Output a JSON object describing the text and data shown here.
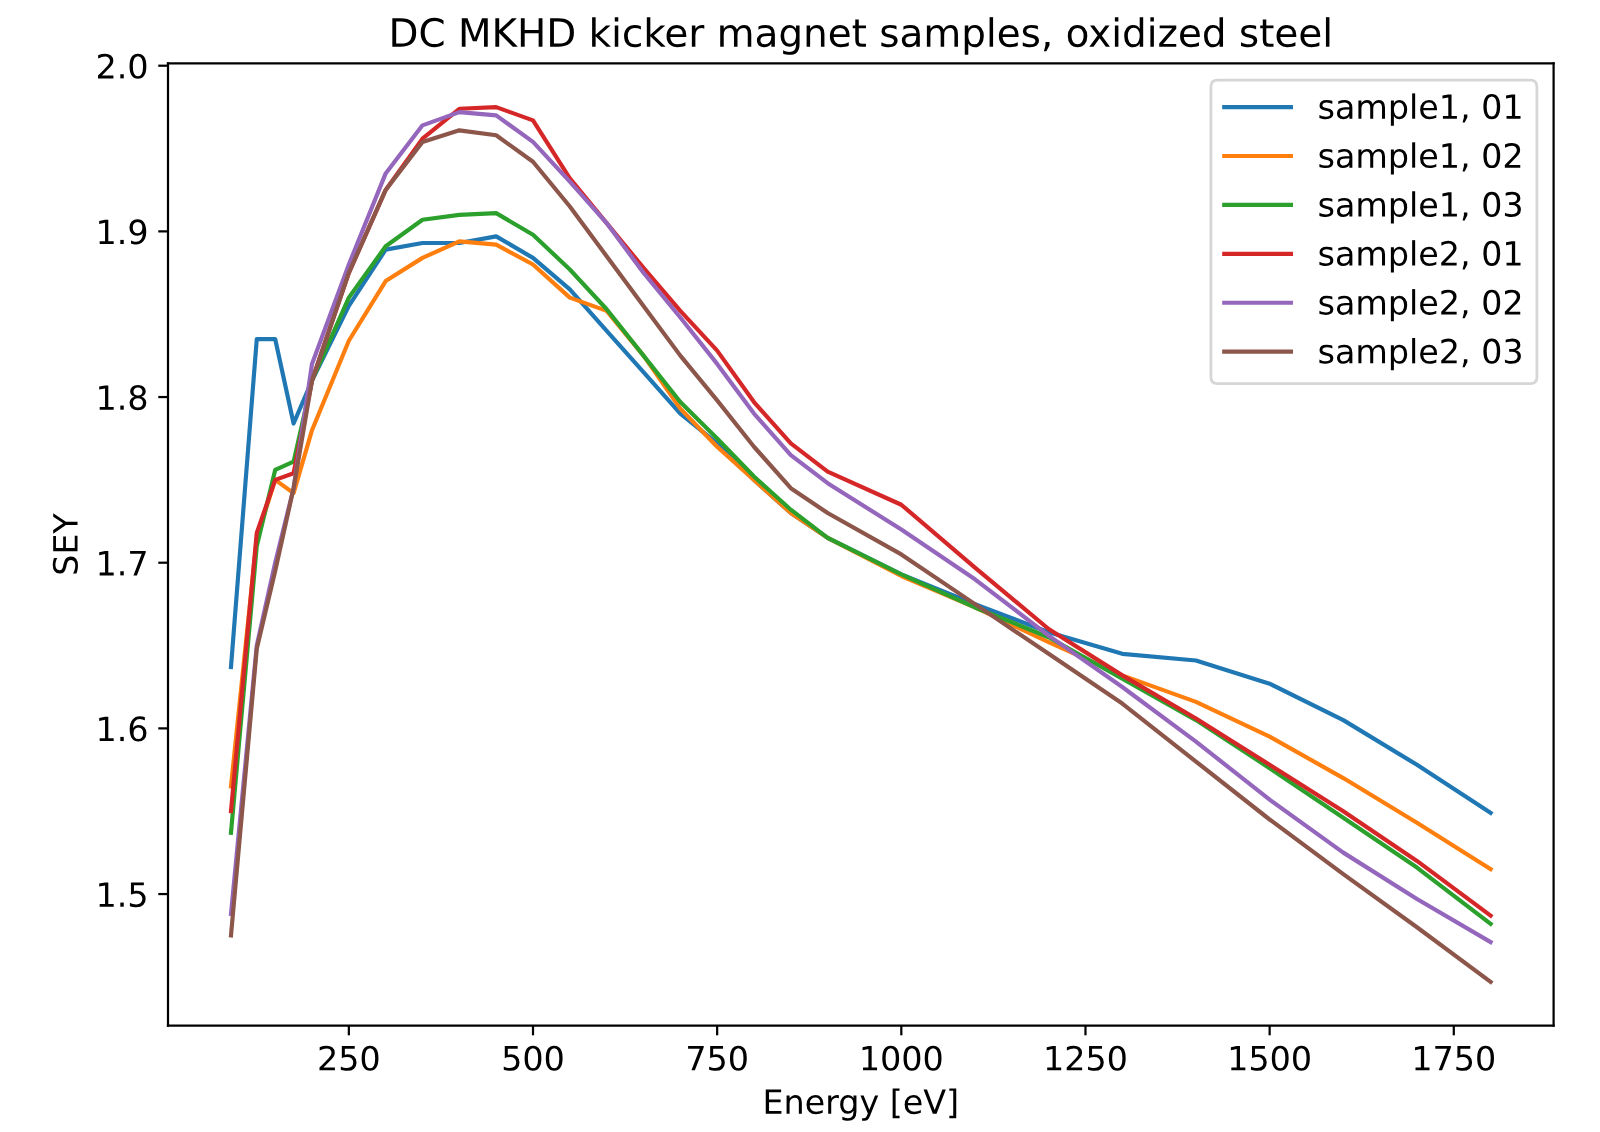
{
  "chart_data": {
    "type": "line",
    "title": "DC MKHD kicker magnet samples, oxidized steel",
    "xlabel": "Energy [eV]",
    "ylabel": "SEY",
    "x": [
      90,
      125,
      150,
      175,
      200,
      250,
      300,
      350,
      400,
      450,
      500,
      550,
      600,
      650,
      700,
      750,
      800,
      850,
      900,
      1000,
      1100,
      1200,
      1300,
      1400,
      1500,
      1600,
      1700,
      1800
    ],
    "series": [
      {
        "name": "sample1, 01",
        "color": "#1f77b4",
        "values": [
          1.637,
          1.835,
          1.835,
          1.784,
          1.81,
          1.855,
          1.889,
          1.893,
          1.893,
          1.897,
          1.884,
          1.865,
          1.84,
          1.815,
          1.79,
          1.772,
          1.75,
          1.73,
          1.715,
          1.693,
          1.675,
          1.658,
          1.645,
          1.641,
          1.627,
          1.605,
          1.578,
          1.549
        ]
      },
      {
        "name": "sample1, 02",
        "color": "#ff7f0e",
        "values": [
          1.565,
          1.715,
          1.75,
          1.742,
          1.78,
          1.834,
          1.87,
          1.884,
          1.894,
          1.892,
          1.88,
          1.86,
          1.852,
          1.825,
          1.793,
          1.77,
          1.75,
          1.73,
          1.715,
          1.692,
          1.673,
          1.652,
          1.632,
          1.616,
          1.595,
          1.57,
          1.543,
          1.515
        ]
      },
      {
        "name": "sample1, 03",
        "color": "#2ca02c",
        "values": [
          1.537,
          1.71,
          1.756,
          1.761,
          1.81,
          1.86,
          1.891,
          1.907,
          1.91,
          1.911,
          1.898,
          1.877,
          1.853,
          1.825,
          1.797,
          1.775,
          1.752,
          1.732,
          1.715,
          1.693,
          1.673,
          1.655,
          1.63,
          1.605,
          1.576,
          1.546,
          1.516,
          1.482
        ]
      },
      {
        "name": "sample2, 01",
        "color": "#d62728",
        "values": [
          1.55,
          1.718,
          1.75,
          1.754,
          1.81,
          1.875,
          1.925,
          1.956,
          1.974,
          1.975,
          1.967,
          1.932,
          1.905,
          1.878,
          1.852,
          1.828,
          1.797,
          1.772,
          1.755,
          1.735,
          1.697,
          1.66,
          1.632,
          1.606,
          1.578,
          1.55,
          1.52,
          1.487
        ]
      },
      {
        "name": "sample2, 02",
        "color": "#9467bd",
        "values": [
          1.488,
          1.65,
          1.7,
          1.745,
          1.82,
          1.88,
          1.935,
          1.964,
          1.972,
          1.97,
          1.954,
          1.93,
          1.905,
          1.875,
          1.848,
          1.82,
          1.79,
          1.765,
          1.748,
          1.72,
          1.69,
          1.656,
          1.625,
          1.592,
          1.557,
          1.525,
          1.497,
          1.471
        ]
      },
      {
        "name": "sample2, 03",
        "color": "#8c564b",
        "values": [
          1.475,
          1.648,
          1.695,
          1.745,
          1.81,
          1.875,
          1.925,
          1.954,
          1.961,
          1.958,
          1.942,
          1.915,
          1.885,
          1.855,
          1.825,
          1.798,
          1.77,
          1.745,
          1.73,
          1.705,
          1.675,
          1.645,
          1.615,
          1.58,
          1.545,
          1.512,
          1.48,
          1.447
        ]
      }
    ],
    "xlim": [
      4.5,
      1885.5
    ],
    "xticks": [
      250,
      500,
      750,
      1000,
      1250,
      1500,
      1750
    ],
    "ylim": [
      1.4206,
      2.0014
    ],
    "yticks": [
      1.5,
      1.6,
      1.7,
      1.8,
      1.9,
      {
        "value": 2,
        "label": "2.0"
      }
    ],
    "grid": false,
    "legend": "top right",
    "marker": "none",
    "line_style": "solid"
  }
}
